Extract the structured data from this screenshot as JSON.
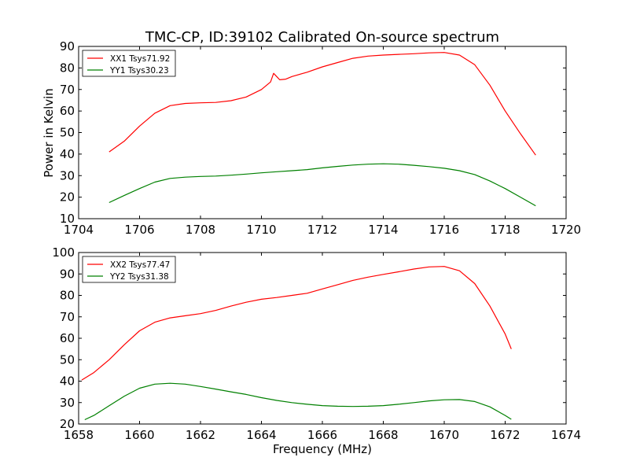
{
  "chart_data": {
    "title": "TMC-CP, ID:39102 Calibrated On-source spectrum",
    "shared_xlabel": "Frequency (MHz)",
    "panels": [
      {
        "type": "line",
        "ylabel": "Power in Kelvin",
        "xlim": [
          1704,
          1720
        ],
        "ylim": [
          10,
          90
        ],
        "xticks": [
          1704,
          1706,
          1708,
          1710,
          1712,
          1714,
          1716,
          1718,
          1720
        ],
        "yticks": [
          10,
          20,
          30,
          40,
          50,
          60,
          70,
          80,
          90
        ],
        "legend_position": "top-left",
        "series": [
          {
            "name": "XX1 Tsys71.92",
            "color": "#ff0000",
            "points": [
              [
                1705.0,
                41
              ],
              [
                1705.5,
                46
              ],
              [
                1706.0,
                53
              ],
              [
                1706.5,
                59
              ],
              [
                1707.0,
                62.5
              ],
              [
                1707.5,
                63.5
              ],
              [
                1708.0,
                63.8
              ],
              [
                1708.5,
                64
              ],
              [
                1709.0,
                64.8
              ],
              [
                1709.5,
                66.5
              ],
              [
                1710.0,
                70
              ],
              [
                1710.3,
                73.5
              ],
              [
                1710.4,
                77.5
              ],
              [
                1710.5,
                76
              ],
              [
                1710.6,
                74.5
              ],
              [
                1710.8,
                74.8
              ],
              [
                1711.0,
                76
              ],
              [
                1711.5,
                78
              ],
              [
                1712.0,
                80.5
              ],
              [
                1712.5,
                82.5
              ],
              [
                1713.0,
                84.5
              ],
              [
                1713.5,
                85.5
              ],
              [
                1714.0,
                86
              ],
              [
                1714.5,
                86.3
              ],
              [
                1715.0,
                86.6
              ],
              [
                1715.5,
                87
              ],
              [
                1716.0,
                87.2
              ],
              [
                1716.5,
                86
              ],
              [
                1717.0,
                81.5
              ],
              [
                1717.5,
                72
              ],
              [
                1718.0,
                60
              ],
              [
                1718.5,
                49.5
              ],
              [
                1719.0,
                39.5
              ]
            ]
          },
          {
            "name": "YY1 Tsys30.23",
            "color": "#008000",
            "points": [
              [
                1705.0,
                17.5
              ],
              [
                1705.5,
                20.8
              ],
              [
                1706.0,
                24
              ],
              [
                1706.5,
                27
              ],
              [
                1707.0,
                28.7
              ],
              [
                1707.5,
                29.3
              ],
              [
                1708.0,
                29.6
              ],
              [
                1708.5,
                29.8
              ],
              [
                1709.0,
                30.2
              ],
              [
                1709.5,
                30.7
              ],
              [
                1710.0,
                31.3
              ],
              [
                1710.5,
                31.8
              ],
              [
                1711.0,
                32.3
              ],
              [
                1711.5,
                32.8
              ],
              [
                1712.0,
                33.6
              ],
              [
                1712.5,
                34.3
              ],
              [
                1713.0,
                34.9
              ],
              [
                1713.5,
                35.3
              ],
              [
                1714.0,
                35.5
              ],
              [
                1714.5,
                35.3
              ],
              [
                1715.0,
                34.8
              ],
              [
                1715.5,
                34.2
              ],
              [
                1716.0,
                33.4
              ],
              [
                1716.5,
                32.3
              ],
              [
                1717.0,
                30.5
              ],
              [
                1717.5,
                27.5
              ],
              [
                1718.0,
                24
              ],
              [
                1718.5,
                20
              ],
              [
                1719.0,
                16
              ]
            ]
          }
        ]
      },
      {
        "type": "line",
        "xlabel": "Frequency (MHz)",
        "xlim": [
          1658,
          1674
        ],
        "ylim": [
          20,
          100
        ],
        "xticks": [
          1658,
          1660,
          1662,
          1664,
          1666,
          1668,
          1670,
          1672,
          1674
        ],
        "yticks": [
          20,
          30,
          40,
          50,
          60,
          70,
          80,
          90,
          100
        ],
        "legend_position": "top-left",
        "series": [
          {
            "name": "XX2 Tsys77.47",
            "color": "#ff0000",
            "points": [
              [
                1658.1,
                40.5
              ],
              [
                1658.5,
                44
              ],
              [
                1659.0,
                50
              ],
              [
                1659.5,
                57
              ],
              [
                1660.0,
                63.5
              ],
              [
                1660.5,
                67.5
              ],
              [
                1661.0,
                69.5
              ],
              [
                1661.5,
                70.5
              ],
              [
                1662.0,
                71.5
              ],
              [
                1662.5,
                73
              ],
              [
                1663.0,
                75
              ],
              [
                1663.5,
                76.8
              ],
              [
                1664.0,
                78.2
              ],
              [
                1664.5,
                79
              ],
              [
                1665.0,
                80
              ],
              [
                1665.5,
                81
              ],
              [
                1666.0,
                83
              ],
              [
                1666.5,
                85
              ],
              [
                1667.0,
                87
              ],
              [
                1667.5,
                88.5
              ],
              [
                1668.0,
                89.8
              ],
              [
                1668.5,
                91
              ],
              [
                1669.0,
                92.3
              ],
              [
                1669.5,
                93.3
              ],
              [
                1670.0,
                93.5
              ],
              [
                1670.5,
                91.5
              ],
              [
                1671.0,
                85.5
              ],
              [
                1671.5,
                75
              ],
              [
                1672.0,
                62
              ],
              [
                1672.2,
                55
              ]
            ]
          },
          {
            "name": "YY2 Tsys31.38",
            "color": "#008000",
            "points": [
              [
                1658.2,
                22
              ],
              [
                1658.5,
                24
              ],
              [
                1659.0,
                28.5
              ],
              [
                1659.5,
                33
              ],
              [
                1660.0,
                36.7
              ],
              [
                1660.5,
                38.6
              ],
              [
                1661.0,
                39
              ],
              [
                1661.5,
                38.6
              ],
              [
                1662.0,
                37.5
              ],
              [
                1662.5,
                36.3
              ],
              [
                1663.0,
                35
              ],
              [
                1663.5,
                33.8
              ],
              [
                1664.0,
                32.3
              ],
              [
                1664.5,
                31
              ],
              [
                1665.0,
                30
              ],
              [
                1665.5,
                29.2
              ],
              [
                1666.0,
                28.6
              ],
              [
                1666.5,
                28.3
              ],
              [
                1667.0,
                28.2
              ],
              [
                1667.5,
                28.3
              ],
              [
                1668.0,
                28.6
              ],
              [
                1668.5,
                29.2
              ],
              [
                1669.0,
                30
              ],
              [
                1669.5,
                30.8
              ],
              [
                1670.0,
                31.3
              ],
              [
                1670.5,
                31.4
              ],
              [
                1671.0,
                30.5
              ],
              [
                1671.5,
                28
              ],
              [
                1672.0,
                24
              ],
              [
                1672.2,
                22.2
              ]
            ]
          }
        ]
      }
    ]
  }
}
